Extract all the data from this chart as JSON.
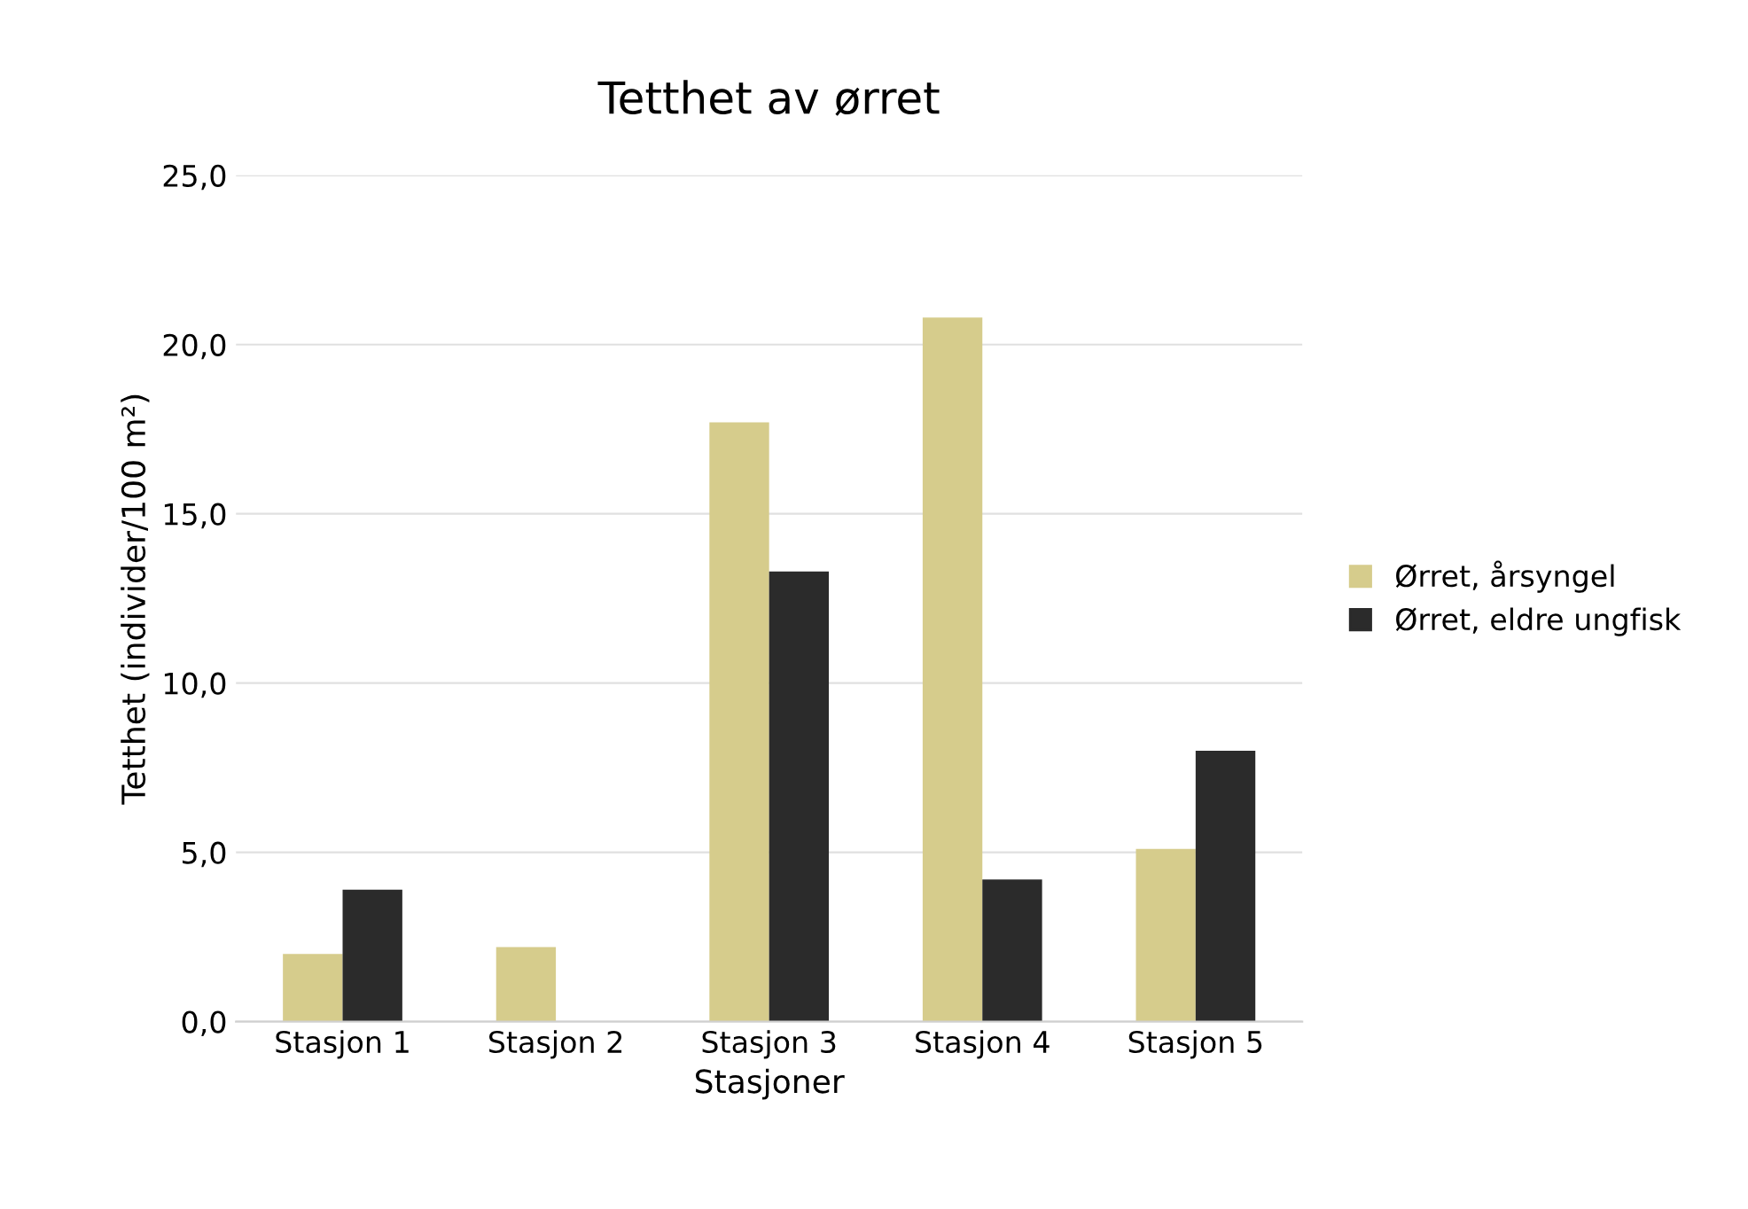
{
  "chart_data": {
    "type": "bar",
    "title": "Tetthet av ørret",
    "xlabel": "Stasjoner",
    "ylabel": "Tetthet (individer/100 m²)",
    "categories": [
      "Stasjon 1",
      "Stasjon 2",
      "Stasjon 3",
      "Stasjon 4",
      "Stasjon 5"
    ],
    "series": [
      {
        "name": "Ørret, årsyngel",
        "color": "#d6cc8c",
        "values": [
          2.0,
          2.2,
          17.7,
          20.8,
          5.1
        ]
      },
      {
        "name": "Ørret, eldre ungfisk",
        "color": "#2b2b2b",
        "values": [
          3.9,
          null,
          13.3,
          4.2,
          8.0
        ]
      }
    ],
    "ylim": [
      0,
      25
    ],
    "yticks": [
      {
        "value": 0,
        "label": "0,0"
      },
      {
        "value": 5,
        "label": "5,0"
      },
      {
        "value": 10,
        "label": "10,0"
      },
      {
        "value": 15,
        "label": "15,0"
      },
      {
        "value": 20,
        "label": "20,0"
      },
      {
        "value": 25,
        "label": "25,0"
      }
    ],
    "grid": "y",
    "legend": "right"
  }
}
